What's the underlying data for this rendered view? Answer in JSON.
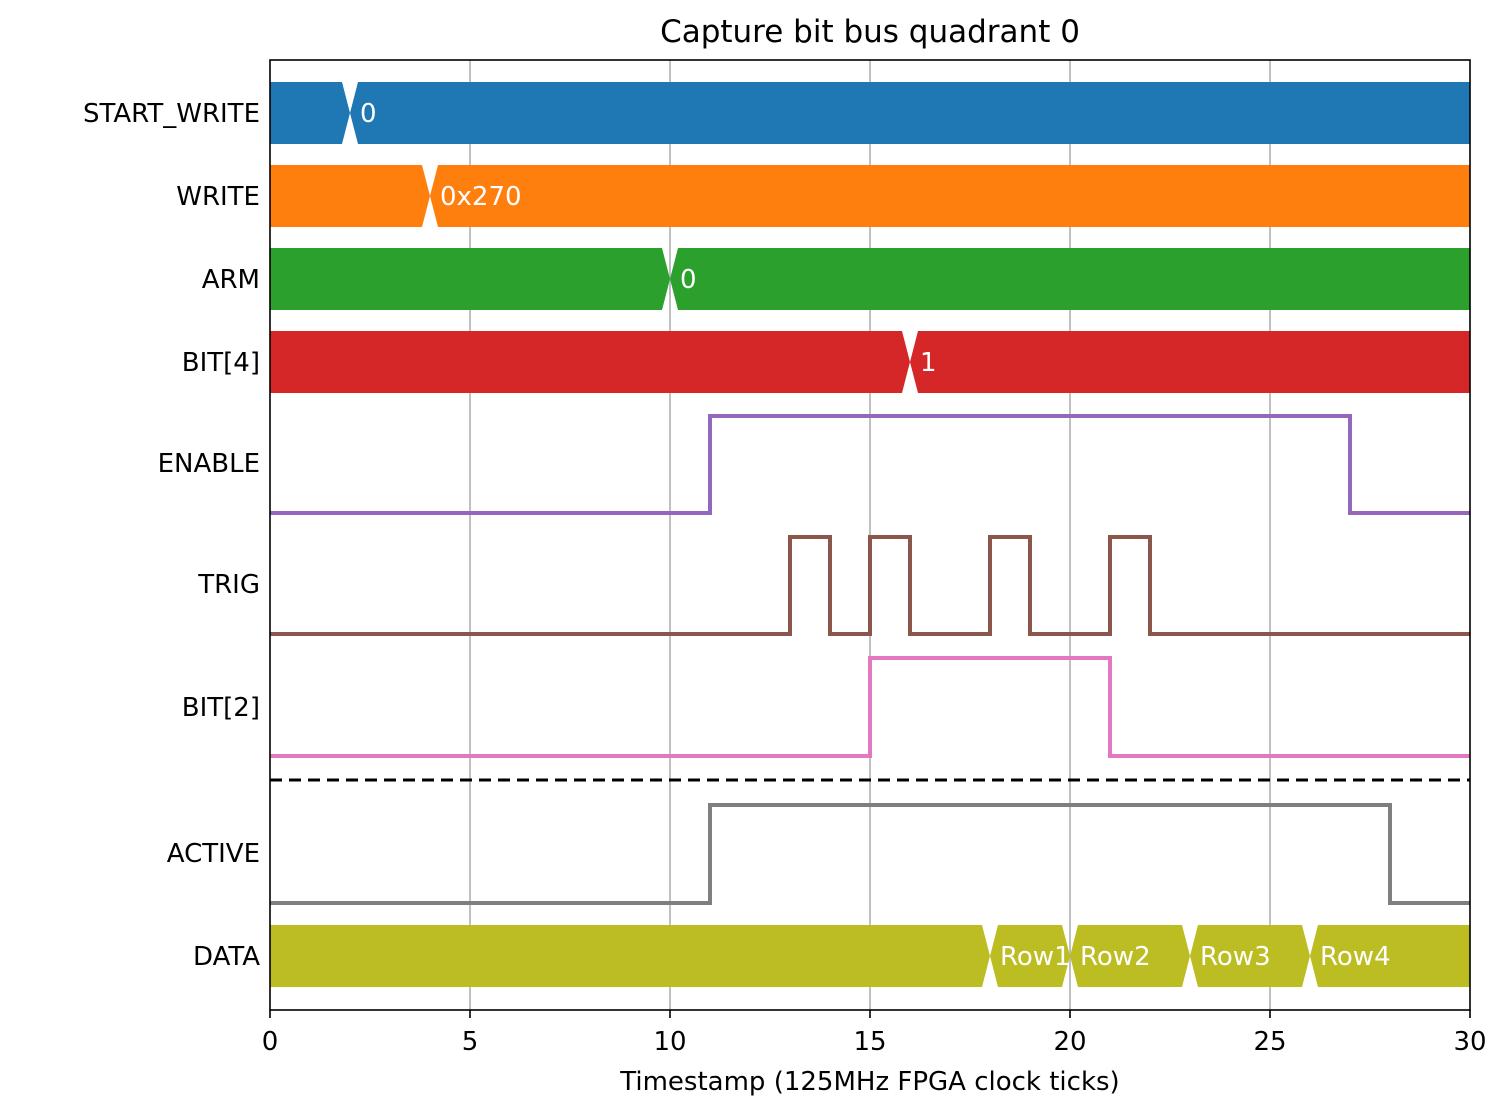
{
  "chart_data": {
    "type": "timing",
    "title": "Capture bit bus quadrant 0",
    "xlabel": "Timestamp (125MHz FPGA clock ticks)",
    "xlim": [
      0,
      30
    ],
    "xticks": [
      0,
      5,
      10,
      15,
      20,
      25,
      30
    ],
    "grid": "vertical",
    "signals": [
      {
        "name": "START_WRITE",
        "kind": "bus",
        "color": "#1f77b4",
        "segments": [
          {
            "start": 0,
            "end": 2,
            "label": ""
          },
          {
            "start": 2,
            "end": 30,
            "label": "0"
          }
        ]
      },
      {
        "name": "WRITE",
        "kind": "bus",
        "color": "#ff7f0e",
        "segments": [
          {
            "start": 0,
            "end": 4,
            "label": ""
          },
          {
            "start": 4,
            "end": 30,
            "label": "0x270"
          }
        ]
      },
      {
        "name": "ARM",
        "kind": "bus",
        "color": "#2ca02c",
        "segments": [
          {
            "start": 0,
            "end": 10,
            "label": ""
          },
          {
            "start": 10,
            "end": 30,
            "label": "0"
          }
        ]
      },
      {
        "name": "BIT[4]",
        "kind": "bus",
        "color": "#d62728",
        "segments": [
          {
            "start": 0,
            "end": 16,
            "label": ""
          },
          {
            "start": 16,
            "end": 30,
            "label": "1"
          }
        ]
      },
      {
        "name": "ENABLE",
        "kind": "bit",
        "color": "#9467bd",
        "steps": [
          [
            0,
            0
          ],
          [
            11,
            1
          ],
          [
            27,
            0
          ],
          [
            30,
            0
          ]
        ]
      },
      {
        "name": "TRIG",
        "kind": "bit",
        "color": "#8c564b",
        "steps": [
          [
            0,
            0
          ],
          [
            13,
            1
          ],
          [
            14,
            0
          ],
          [
            15,
            1
          ],
          [
            16,
            0
          ],
          [
            18,
            1
          ],
          [
            19,
            0
          ],
          [
            21,
            1
          ],
          [
            22,
            0
          ],
          [
            30,
            0
          ]
        ]
      },
      {
        "name": "BIT[2]",
        "kind": "bit",
        "color": "#e377c2",
        "steps": [
          [
            0,
            0
          ],
          [
            15,
            1
          ],
          [
            21,
            0
          ],
          [
            30,
            0
          ]
        ]
      },
      {
        "name": "ACTIVE",
        "kind": "bit",
        "color": "#7f7f7f",
        "steps": [
          [
            0,
            0
          ],
          [
            11,
            1
          ],
          [
            28,
            0
          ],
          [
            30,
            0
          ]
        ]
      },
      {
        "name": "DATA",
        "kind": "bus",
        "color": "#bcbd22",
        "segments": [
          {
            "start": 0,
            "end": 18,
            "label": ""
          },
          {
            "start": 18,
            "end": 20,
            "label": "Row1"
          },
          {
            "start": 20,
            "end": 23,
            "label": "Row2"
          },
          {
            "start": 23,
            "end": 26,
            "label": "Row3"
          },
          {
            "start": 26,
            "end": 30,
            "label": "Row4"
          }
        ]
      }
    ],
    "separator": {
      "after_signal": "BIT[2]",
      "style": "dashed"
    }
  }
}
